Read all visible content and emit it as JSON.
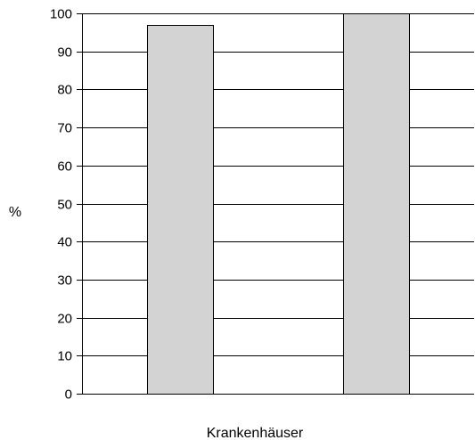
{
  "chart_data": {
    "type": "bar",
    "categories": [
      "",
      ""
    ],
    "values": [
      97,
      100
    ],
    "title": "",
    "xlabel": "Krankenhäuser",
    "ylabel": "%",
    "ylim": [
      0,
      100
    ],
    "yticks": [
      0,
      10,
      20,
      30,
      40,
      50,
      60,
      70,
      80,
      90,
      100
    ],
    "grid": true,
    "legend": "none",
    "colors": {
      "bar_fill": "#d3d3d3",
      "bar_stroke": "#000000",
      "grid": "#000000",
      "axis": "#000000"
    }
  }
}
